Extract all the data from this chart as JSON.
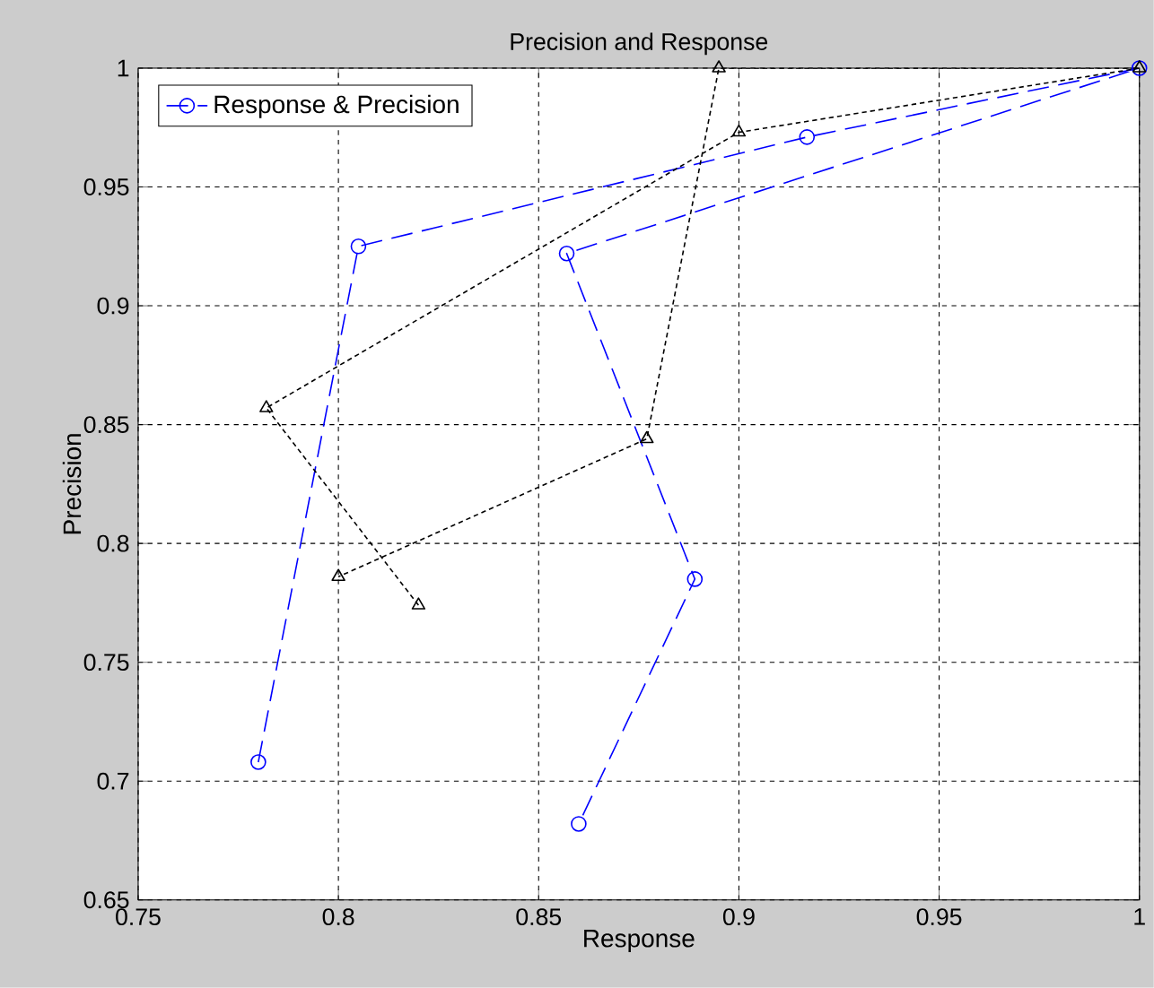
{
  "chart_data": {
    "type": "line",
    "title": "Precision and Response",
    "xlabel": "Response",
    "ylabel": "Precision",
    "xlim": [
      0.75,
      1
    ],
    "ylim": [
      0.65,
      1
    ],
    "xticks": [
      0.75,
      0.8,
      0.85,
      0.9,
      0.95,
      1
    ],
    "yticks": [
      0.65,
      0.7,
      0.75,
      0.8,
      0.85,
      0.9,
      0.95,
      1
    ],
    "grid": true,
    "legend": "top left",
    "series": [
      {
        "name": "Response & Precision",
        "color": "#0000ff",
        "marker": "circle",
        "line_style": "dashed",
        "x": [
          0.78,
          0.805,
          0.917,
          1.0,
          0.857,
          0.889,
          0.86
        ],
        "values": [
          0.708,
          0.925,
          0.971,
          1.0,
          0.922,
          0.785,
          0.682
        ]
      },
      {
        "color": "#000000",
        "marker": "triangle",
        "line_style": "dotted",
        "x": [
          0.82,
          0.782,
          0.9,
          1.0,
          0.895,
          0.877,
          0.8
        ],
        "values": [
          0.774,
          0.857,
          0.973,
          1.0,
          1.0,
          0.844,
          0.786
        ]
      }
    ]
  }
}
